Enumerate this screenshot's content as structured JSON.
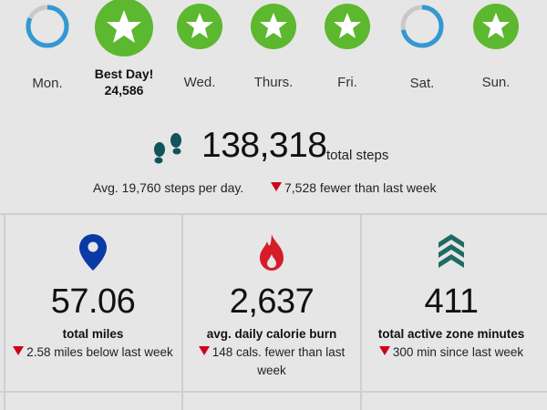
{
  "week": {
    "days": [
      {
        "label": "Mon.",
        "goal_met": false,
        "progress": 0.82
      },
      {
        "label": "",
        "goal_met": true,
        "best": true
      },
      {
        "label": "Wed.",
        "goal_met": true
      },
      {
        "label": "Thurs.",
        "goal_met": true
      },
      {
        "label": "Fri.",
        "goal_met": true
      },
      {
        "label": "Sat.",
        "goal_met": false,
        "progress": 0.72
      },
      {
        "label": "Sun.",
        "goal_met": true
      }
    ],
    "best_day": {
      "title": "Best Day!",
      "value": "24,586"
    }
  },
  "steps": {
    "total": "138,318",
    "unit": "total steps",
    "avg_text": "Avg. 19,760 steps per day.",
    "change_text": "7,528 fewer than last week"
  },
  "cards": [
    {
      "icon": "location-pin-icon",
      "value": "57.06",
      "label": "total miles",
      "compare": "2.58 miles below last week"
    },
    {
      "icon": "flame-icon",
      "value": "2,637",
      "label": "avg. daily calorie burn",
      "compare": "148 cals. fewer than last week"
    },
    {
      "icon": "chevrons-up-icon",
      "value": "411",
      "label": "total active zone minutes",
      "compare": "300 min since last week"
    }
  ],
  "colors": {
    "goal_green": "#5cb82e",
    "ring_blue": "#3398d3",
    "ring_track": "#c9c9c9",
    "pin_blue": "#0a3aa5",
    "flame_red": "#d61c28",
    "zone_teal": "#1f6b64",
    "down_red": "#d0021b",
    "steps_teal": "#13535a"
  }
}
